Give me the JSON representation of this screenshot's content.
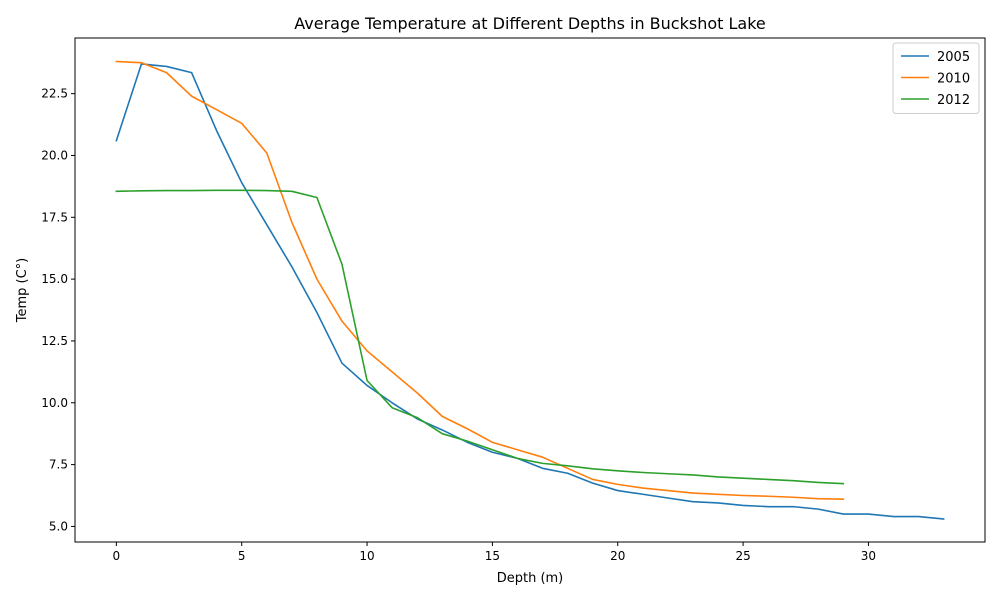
{
  "chart_data": {
    "type": "line",
    "title": "Average Temperature at Different Depths in Buckshot Lake",
    "xlabel": "Depth (m)",
    "ylabel": "Temp (C°)",
    "xlim": [
      -1.65,
      34.65
    ],
    "ylim": [
      4.37,
      24.75
    ],
    "xticks": [
      0,
      5,
      10,
      15,
      20,
      25,
      30
    ],
    "xtick_labels": [
      "0",
      "5",
      "10",
      "15",
      "20",
      "25",
      "30"
    ],
    "yticks": [
      5.0,
      7.5,
      10.0,
      12.5,
      15.0,
      17.5,
      20.0,
      22.5
    ],
    "ytick_labels": [
      "5.0",
      "7.5",
      "10.0",
      "12.5",
      "15.0",
      "17.5",
      "20.0",
      "22.5"
    ],
    "grid": false,
    "legend_position": "top-right",
    "series": [
      {
        "name": "2005",
        "color": "#1f77b4",
        "x": [
          0,
          1,
          2,
          3,
          4,
          5,
          6,
          7,
          8,
          9,
          10,
          11,
          12,
          13,
          14,
          15,
          16,
          17,
          18,
          19,
          20,
          21,
          22,
          23,
          24,
          25,
          26,
          27,
          28,
          29,
          30,
          31,
          32,
          33
        ],
        "y": [
          20.6,
          23.7,
          23.6,
          23.35,
          21.0,
          18.9,
          17.2,
          15.5,
          13.65,
          11.6,
          10.7,
          10.0,
          9.35,
          8.9,
          8.4,
          8.0,
          7.75,
          7.35,
          7.15,
          6.75,
          6.45,
          6.3,
          6.15,
          6.0,
          5.95,
          5.85,
          5.8,
          5.8,
          5.7,
          5.5,
          5.5,
          5.4,
          5.4,
          5.3
        ]
      },
      {
        "name": "2010",
        "color": "#ff7f0e",
        "x": [
          0,
          1,
          2,
          3,
          4,
          5,
          6,
          7,
          8,
          9,
          10,
          11,
          12,
          13,
          14,
          15,
          16,
          17,
          18,
          19,
          20,
          21,
          22,
          23,
          24,
          25,
          26,
          27,
          28,
          29
        ],
        "y": [
          23.8,
          23.75,
          23.35,
          22.4,
          21.85,
          21.3,
          20.1,
          17.3,
          15.0,
          13.3,
          12.1,
          11.25,
          10.4,
          9.45,
          8.95,
          8.4,
          8.1,
          7.8,
          7.35,
          6.9,
          6.7,
          6.55,
          6.45,
          6.35,
          6.3,
          6.25,
          6.22,
          6.18,
          6.12,
          6.1
        ]
      },
      {
        "name": "2012",
        "color": "#2ca02c",
        "x": [
          0,
          1,
          2,
          3,
          4,
          5,
          6,
          7,
          8,
          9,
          10,
          11,
          12,
          13,
          14,
          15,
          16,
          17,
          18,
          19,
          20,
          21,
          22,
          23,
          24,
          25,
          26,
          27,
          28,
          29
        ],
        "y": [
          18.55,
          18.57,
          18.58,
          18.58,
          18.59,
          18.59,
          18.58,
          18.55,
          18.3,
          15.6,
          10.9,
          9.8,
          9.4,
          8.75,
          8.45,
          8.1,
          7.75,
          7.55,
          7.45,
          7.33,
          7.25,
          7.18,
          7.13,
          7.08,
          7.0,
          6.95,
          6.9,
          6.85,
          6.78,
          6.73
        ]
      }
    ]
  }
}
